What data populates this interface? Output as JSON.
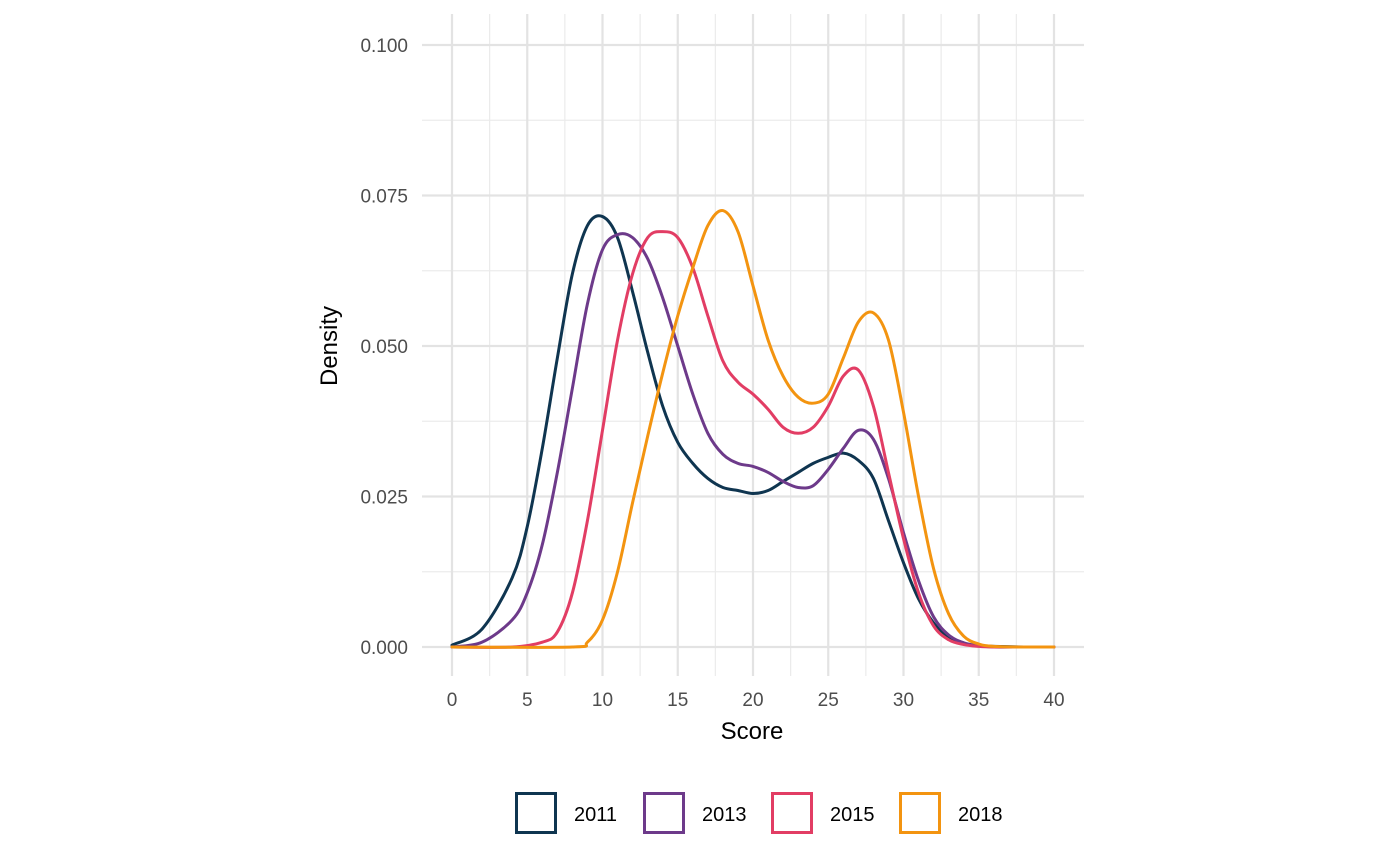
{
  "chart_data": {
    "type": "line",
    "title": "",
    "xlabel": "Score",
    "ylabel": "Density",
    "xlim": [
      0,
      40
    ],
    "ylim": [
      0,
      0.1
    ],
    "x_ticks": [
      0,
      5,
      10,
      15,
      20,
      25,
      30,
      35,
      40
    ],
    "y_ticks": [
      "0.000",
      "0.025",
      "0.050",
      "0.075",
      "0.100"
    ],
    "grid": true,
    "legend_position": "bottom",
    "series": [
      {
        "name": "2011",
        "color": "#0f3550",
        "x": [
          0,
          2,
          4,
          5,
          6,
          7,
          8,
          9,
          10,
          11,
          12,
          13,
          14,
          15,
          16,
          17,
          18,
          19,
          20,
          21,
          22,
          23,
          24,
          25,
          26,
          27,
          28,
          29,
          30,
          31,
          32,
          33,
          34,
          35,
          36,
          38,
          40
        ],
        "y": [
          0.0003,
          0.003,
          0.0115,
          0.02,
          0.033,
          0.048,
          0.062,
          0.07,
          0.0715,
          0.068,
          0.059,
          0.049,
          0.04,
          0.034,
          0.0305,
          0.028,
          0.0265,
          0.026,
          0.0255,
          0.026,
          0.0275,
          0.029,
          0.0305,
          0.0315,
          0.0322,
          0.031,
          0.028,
          0.021,
          0.014,
          0.008,
          0.004,
          0.0015,
          0.0005,
          0.0002,
          0.0001,
          0.0,
          0.0
        ]
      },
      {
        "name": "2013",
        "color": "#6d3a8a",
        "x": [
          0,
          2,
          4,
          5,
          6,
          7,
          8,
          9,
          10,
          11,
          12,
          13,
          14,
          15,
          16,
          17,
          18,
          19,
          20,
          21,
          22,
          23,
          24,
          25,
          26,
          27,
          28,
          29,
          30,
          31,
          32,
          33,
          34,
          35,
          36,
          38,
          40
        ],
        "y": [
          0.0,
          0.0008,
          0.0045,
          0.009,
          0.017,
          0.029,
          0.043,
          0.057,
          0.066,
          0.0685,
          0.068,
          0.0645,
          0.058,
          0.05,
          0.042,
          0.0355,
          0.032,
          0.0305,
          0.03,
          0.029,
          0.0275,
          0.0265,
          0.0268,
          0.0295,
          0.033,
          0.036,
          0.0345,
          0.028,
          0.019,
          0.011,
          0.005,
          0.002,
          0.0007,
          0.0002,
          0.0,
          0.0,
          0.0
        ]
      },
      {
        "name": "2015",
        "color": "#e23d64",
        "x": [
          0,
          4,
          6,
          7,
          8,
          9,
          10,
          11,
          12,
          13,
          14,
          15,
          16,
          17,
          18,
          19,
          20,
          21,
          22,
          23,
          24,
          25,
          26,
          27,
          28,
          29,
          30,
          31,
          32,
          33,
          34,
          35,
          36,
          38,
          40
        ],
        "y": [
          0.0,
          0.0,
          0.0008,
          0.0025,
          0.009,
          0.021,
          0.036,
          0.051,
          0.062,
          0.068,
          0.069,
          0.068,
          0.063,
          0.055,
          0.0475,
          0.044,
          0.042,
          0.0395,
          0.0365,
          0.0355,
          0.0365,
          0.04,
          0.045,
          0.046,
          0.04,
          0.029,
          0.018,
          0.009,
          0.0035,
          0.0012,
          0.0004,
          0.0001,
          0.0,
          0.0,
          0.0
        ]
      },
      {
        "name": "2018",
        "color": "#f39410",
        "x": [
          0,
          8,
          9,
          10,
          11,
          12,
          13,
          14,
          15,
          16,
          17,
          18,
          19,
          20,
          21,
          22,
          23,
          24,
          25,
          26,
          27,
          28,
          29,
          30,
          31,
          32,
          33,
          34,
          35,
          36,
          38,
          40
        ],
        "y": [
          0.0,
          0.0,
          0.0008,
          0.0045,
          0.0125,
          0.024,
          0.035,
          0.0455,
          0.055,
          0.063,
          0.07,
          0.0725,
          0.069,
          0.06,
          0.051,
          0.045,
          0.0415,
          0.0405,
          0.042,
          0.048,
          0.054,
          0.0555,
          0.051,
          0.039,
          0.025,
          0.013,
          0.0055,
          0.0018,
          0.0005,
          0.0001,
          0.0,
          0.0
        ]
      }
    ]
  }
}
